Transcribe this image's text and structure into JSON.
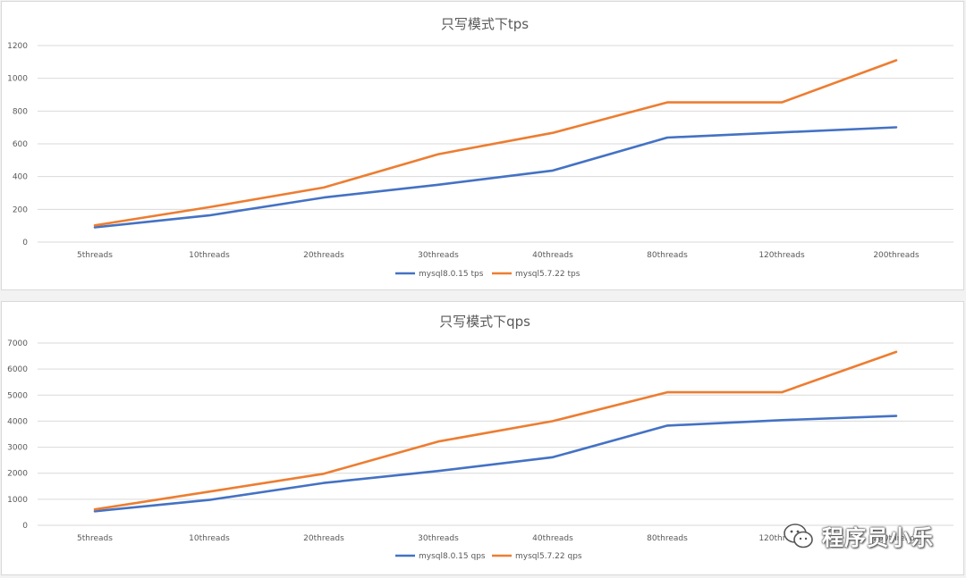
{
  "chart_data": [
    {
      "type": "line",
      "title": "只写模式下tps",
      "categories": [
        "5threads",
        "10threads",
        "20threads",
        "30threads",
        "40threads",
        "80threads",
        "120threads",
        "200threads"
      ],
      "ylim": [
        0,
        1200
      ],
      "yticks": [
        0,
        200,
        400,
        600,
        800,
        1000,
        1200
      ],
      "grid": true,
      "legend_position": "bottom",
      "series": [
        {
          "name": "mysql8.0.15 tps",
          "color": "#4472C4",
          "values": [
            90,
            163,
            272,
            350,
            437,
            638,
            670,
            701
          ]
        },
        {
          "name": "mysql5.7.22 tps",
          "color": "#ED7D31",
          "values": [
            102,
            213,
            333,
            537,
            667,
            853,
            853,
            1110
          ]
        }
      ]
    },
    {
      "type": "line",
      "title": "只写模式下qps",
      "categories": [
        "5threads",
        "10threads",
        "20threads",
        "30threads",
        "40threads",
        "80threads",
        "120threads",
        "200threads"
      ],
      "ylim": [
        0,
        7000
      ],
      "yticks": [
        0,
        1000,
        2000,
        3000,
        4000,
        5000,
        6000,
        7000
      ],
      "grid": true,
      "legend_position": "bottom",
      "series": [
        {
          "name": "mysql8.0.15 qps",
          "color": "#4472C4",
          "values": [
            540,
            975,
            1625,
            2085,
            2615,
            3830,
            4040,
            4200
          ]
        },
        {
          "name": "mysql5.7.22 qps",
          "color": "#ED7D31",
          "values": [
            610,
            1295,
            1980,
            3220,
            4000,
            5110,
            5110,
            6660
          ]
        }
      ]
    }
  ],
  "watermark": {
    "text": "程序员小乐",
    "icon": "wechat-icon"
  }
}
